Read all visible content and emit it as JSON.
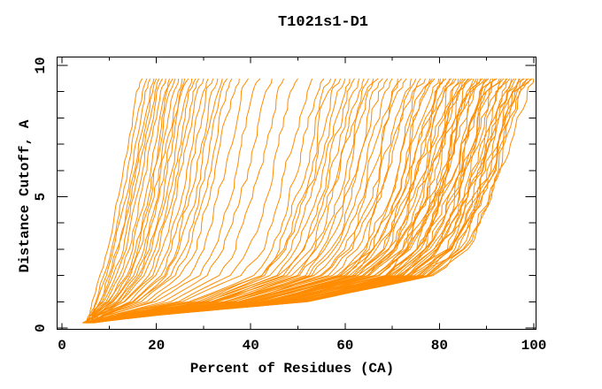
{
  "title": "T1021s1-D1",
  "chart_data": {
    "type": "line",
    "title": "T1021s1-D1",
    "xlabel": "Percent of Residues (CA)",
    "ylabel": "Distance Cutoff, A",
    "xlim": [
      0,
      100
    ],
    "ylim": [
      0,
      10
    ],
    "x_major_ticks": [
      0,
      20,
      40,
      60,
      80,
      100
    ],
    "x_minor_ticks": [
      10,
      30,
      50,
      70,
      90
    ],
    "y_major_ticks": [
      0,
      5,
      10
    ],
    "y_minor_ticks": [
      1,
      2,
      3,
      4,
      6,
      7,
      8,
      9
    ],
    "grid": false,
    "legend": "none",
    "background": "#ffffff",
    "axis_color": "#000000",
    "series_color": "#ff8c00",
    "n_curves": 102,
    "curve_model": {
      "description": "Each of the 102 unlabeled model curves rises monotonically from (~5%, 0.2 A) to (curve_top_x, 9.5 A). x(y) is interpolated between best_envelope_x and worst_envelope_x at the given y_knots with blend factor s = (curve_top_x - 17) / 80.5.",
      "y_knots": [
        0.2,
        0.5,
        1,
        2,
        3,
        4,
        5,
        6,
        7,
        8,
        9,
        9.5
      ],
      "best_envelope_x": [
        4.5,
        5.5,
        6.5,
        8,
        9.5,
        10.8,
        12,
        13,
        14,
        15,
        16,
        17
      ],
      "worst_envelope_x": [
        6,
        20,
        50,
        76,
        83,
        86,
        88.5,
        90.5,
        92,
        93.5,
        95.5,
        97.5
      ],
      "curve_start_x_range": [
        4.3,
        6.8
      ],
      "curve_top_x": [
        17,
        18,
        18.7,
        19.5,
        20,
        20.6,
        21.3,
        22,
        22.8,
        23.5,
        24,
        24.7,
        25.5,
        26,
        26.8,
        27.5,
        28.3,
        29,
        30,
        31,
        32,
        33,
        34,
        35,
        36,
        37.5,
        39.5,
        42,
        44.5,
        47,
        50,
        53,
        55.5,
        57,
        58,
        59,
        60,
        61,
        62,
        63,
        64,
        65,
        66,
        67,
        68,
        69,
        70,
        71,
        72,
        73,
        74,
        75,
        76,
        77,
        78,
        78.5,
        79,
        79.6,
        80.2,
        80.8,
        81.4,
        82,
        82.5,
        83,
        83.5,
        84,
        84.5,
        85,
        85.5,
        86,
        86.4,
        86.9,
        87.3,
        87.8,
        88.2,
        88.7,
        89.1,
        89.6,
        90,
        90.4,
        90.9,
        91.3,
        91.8,
        92.2,
        92.7,
        93.1,
        93.6,
        94,
        94.4,
        94.9,
        95.3,
        95.8,
        96.2,
        96.7,
        97.1,
        97.6,
        98,
        98.4,
        98.9,
        99.3,
        99.7,
        100
      ]
    }
  }
}
